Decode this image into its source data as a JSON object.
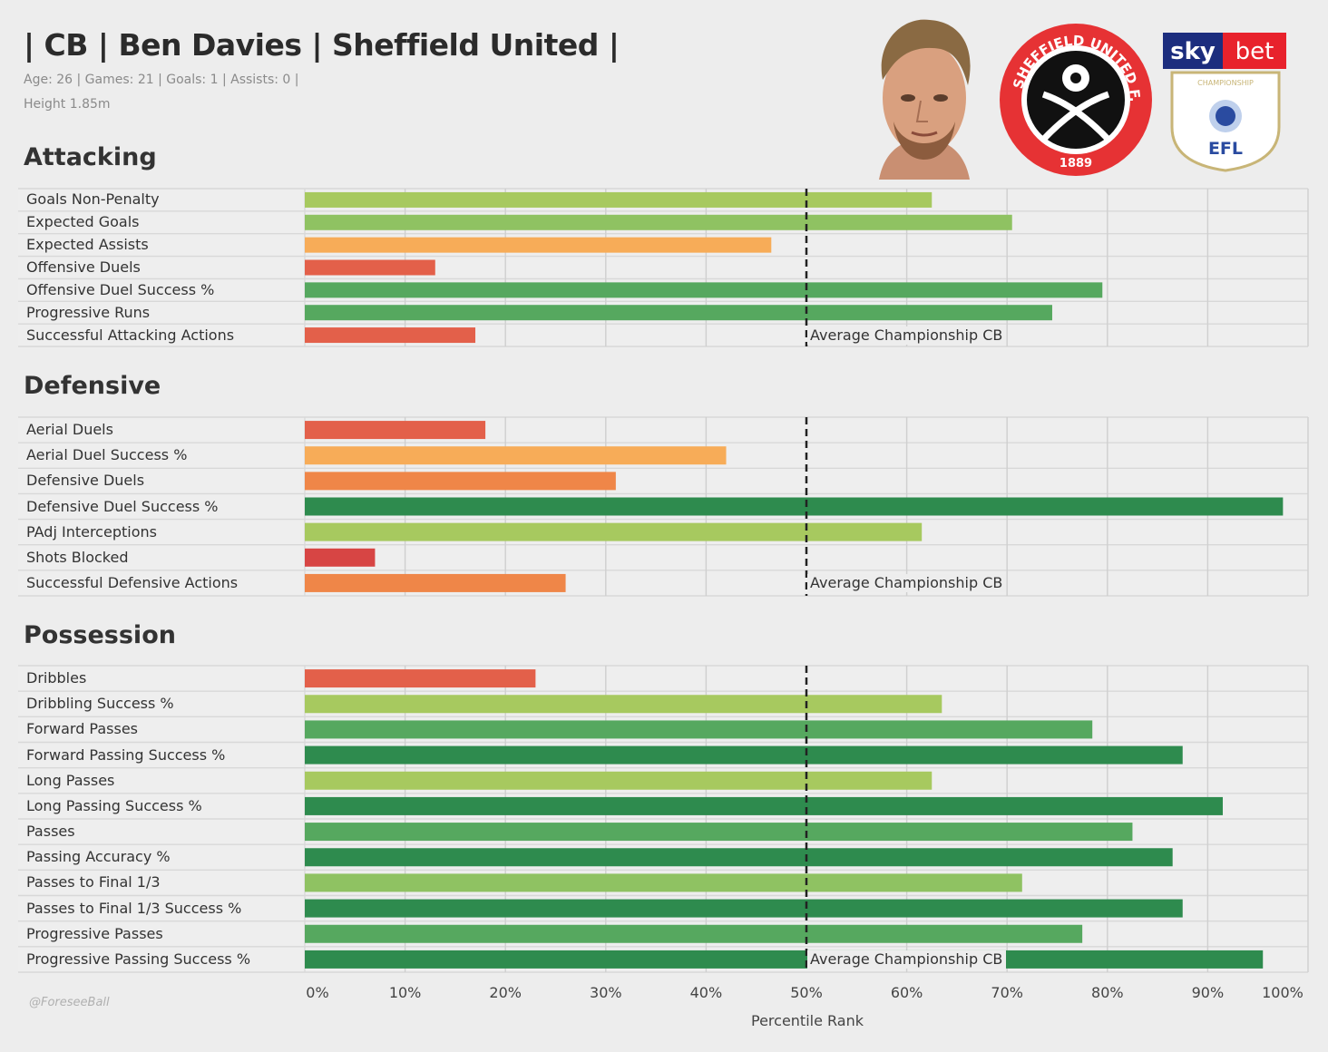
{
  "header": {
    "title": "| CB | Ben Davies | Sheffield United |",
    "stats_line": "Age: 26 | Games: 21 | Goals: 1 | Assists: 0 |",
    "height_line": "Height 1.85m"
  },
  "logos": {
    "club_ring_text": "SHEFFIELD UNITED F.C.",
    "club_year": "1889",
    "league_sky": "sky",
    "league_bet": "bet",
    "league_championship": "CHAMPIONSHIP",
    "league_efl": "EFL"
  },
  "watermark": "@ForeseeBall",
  "colors": {
    "dark_green": "#2e8b4e",
    "mid_green": "#56a85f",
    "light_green": "#8fc262",
    "yellow_green": "#a7c95f",
    "light_orange": "#f7ac58",
    "orange": "#ef8648",
    "red_orange": "#e3604a",
    "red": "#d74544",
    "background": "#ededed"
  },
  "chart_data": {
    "type": "bar",
    "orientation": "horizontal",
    "xlabel": "Percentile Rank",
    "xlim": [
      0,
      100
    ],
    "xticks": [
      "0%",
      "10%",
      "20%",
      "30%",
      "40%",
      "50%",
      "60%",
      "70%",
      "80%",
      "90%",
      "100%"
    ],
    "reference_line": {
      "value": 50,
      "label": "Average Championship CB",
      "style": "dashed"
    },
    "grid": true,
    "sections": [
      {
        "name": "Attacking",
        "categories": [
          "Goals Non-Penalty",
          "Expected Goals",
          "Expected Assists",
          "Offensive Duels",
          "Offensive Duel Success %",
          "Progressive Runs",
          "Successful Attacking Actions"
        ],
        "values": [
          62.5,
          70.5,
          46.5,
          13,
          79.5,
          74.5,
          17
        ]
      },
      {
        "name": "Defensive",
        "categories": [
          "Aerial Duels",
          "Aerial Duel Success %",
          "Defensive Duels",
          "Defensive Duel Success %",
          "PAdj Interceptions",
          "Shots Blocked",
          "Successful Defensive Actions"
        ],
        "values": [
          18,
          42,
          31,
          97.5,
          61.5,
          7,
          26
        ]
      },
      {
        "name": "Possession",
        "categories": [
          "Dribbles",
          "Dribbling Success %",
          "Forward Passes",
          "Forward Passing Success %",
          "Long Passes",
          "Long Passing Success %",
          "Passes",
          "Passing Accuracy %",
          "Passes to Final 1/3",
          "Passes to Final 1/3 Success %",
          "Progressive Passes",
          "Progressive Passing Success %"
        ],
        "values": [
          23,
          63.5,
          78.5,
          87.5,
          62.5,
          91.5,
          82.5,
          86.5,
          71.5,
          87.5,
          77.5,
          95.5
        ]
      }
    ]
  }
}
